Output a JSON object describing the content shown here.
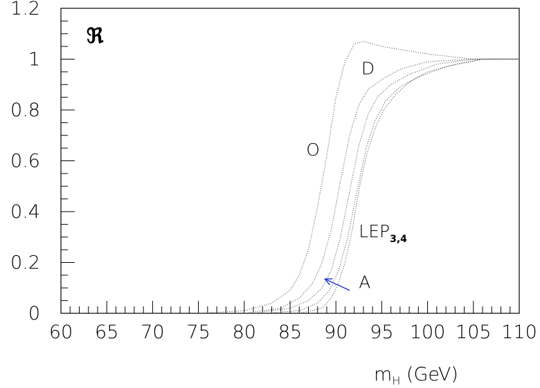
{
  "chart_data": {
    "type": "line",
    "xlabel_main": "m",
    "xlabel_sub": "H",
    "xlabel_unit": "(GeV)",
    "ylabel_symbol": "ℜ",
    "xlim": [
      60,
      110
    ],
    "ylim": [
      0,
      1.2
    ],
    "x_ticks": [
      60,
      65,
      70,
      75,
      80,
      85,
      90,
      95,
      100,
      105,
      110
    ],
    "x_tick_labels": [
      "60",
      "65",
      "70",
      "75",
      "80",
      "85",
      "90",
      "95",
      "100",
      "105",
      "110"
    ],
    "y_ticks": [
      0,
      0.2,
      0.4,
      0.6,
      0.8,
      1,
      1.2
    ],
    "y_tick_labels": [
      "0",
      "0.2",
      "0.4",
      "0.6",
      "0.8",
      "1",
      "1.2"
    ],
    "series": [
      {
        "name": "O",
        "x": [
          75,
          80,
          83,
          85,
          86,
          87,
          88,
          89,
          90,
          91,
          92,
          93,
          95,
          100,
          105,
          110
        ],
        "y": [
          0.0,
          0.01,
          0.04,
          0.09,
          0.15,
          0.25,
          0.42,
          0.62,
          0.85,
          0.99,
          1.06,
          1.07,
          1.05,
          1.02,
          1.0,
          1.0
        ]
      },
      {
        "name": "",
        "x": [
          80,
          84,
          86,
          87.5,
          88.5,
          89.5,
          90.5,
          91.5,
          92.5,
          93.5,
          95,
          97,
          100,
          105,
          110
        ],
        "y": [
          0.0,
          0.02,
          0.06,
          0.12,
          0.2,
          0.33,
          0.52,
          0.7,
          0.82,
          0.88,
          0.92,
          0.96,
          0.99,
          1.0,
          1.0
        ]
      },
      {
        "name": "",
        "x": [
          81,
          85,
          87,
          88.5,
          89.5,
          90.5,
          91.5,
          92.5,
          93.5,
          94.5,
          96,
          98,
          101,
          105,
          110
        ],
        "y": [
          0.0,
          0.02,
          0.05,
          0.1,
          0.17,
          0.3,
          0.48,
          0.66,
          0.78,
          0.85,
          0.9,
          0.94,
          0.98,
          1.0,
          1.0
        ]
      },
      {
        "name": "",
        "x": [
          82,
          86,
          88,
          89.3,
          90.3,
          91.3,
          92.3,
          93.3,
          94.3,
          95.5,
          97,
          99,
          102,
          106,
          110
        ],
        "y": [
          0.0,
          0.01,
          0.04,
          0.09,
          0.17,
          0.3,
          0.48,
          0.65,
          0.76,
          0.84,
          0.89,
          0.93,
          0.97,
          1.0,
          1.0
        ]
      },
      {
        "name": "",
        "x": [
          86,
          88.5,
          89.5,
          90.2,
          91,
          91.8,
          92.6,
          93.4,
          94.3,
          95.2,
          96.5,
          98,
          100,
          103,
          106,
          110
        ],
        "y": [
          0.0,
          0.02,
          0.06,
          0.11,
          0.2,
          0.33,
          0.5,
          0.63,
          0.73,
          0.8,
          0.86,
          0.91,
          0.95,
          0.98,
          1.0,
          1.0
        ]
      }
    ],
    "annotations": {
      "O": {
        "text": "O",
        "x": 87.5,
        "y": 0.62
      },
      "D": {
        "text": "D",
        "x": 93.5,
        "y": 0.94
      },
      "LEP": {
        "text": "LEP",
        "sub": "3,4",
        "x": 92.5,
        "y": 0.3
      },
      "A": {
        "text": "A",
        "x": 92.5,
        "y": 0.1
      },
      "arrow": {
        "from": [
          91.5,
          0.09
        ],
        "to": [
          88.8,
          0.135
        ],
        "color": "#1f2fd0"
      }
    },
    "curve_color": "#555555"
  }
}
